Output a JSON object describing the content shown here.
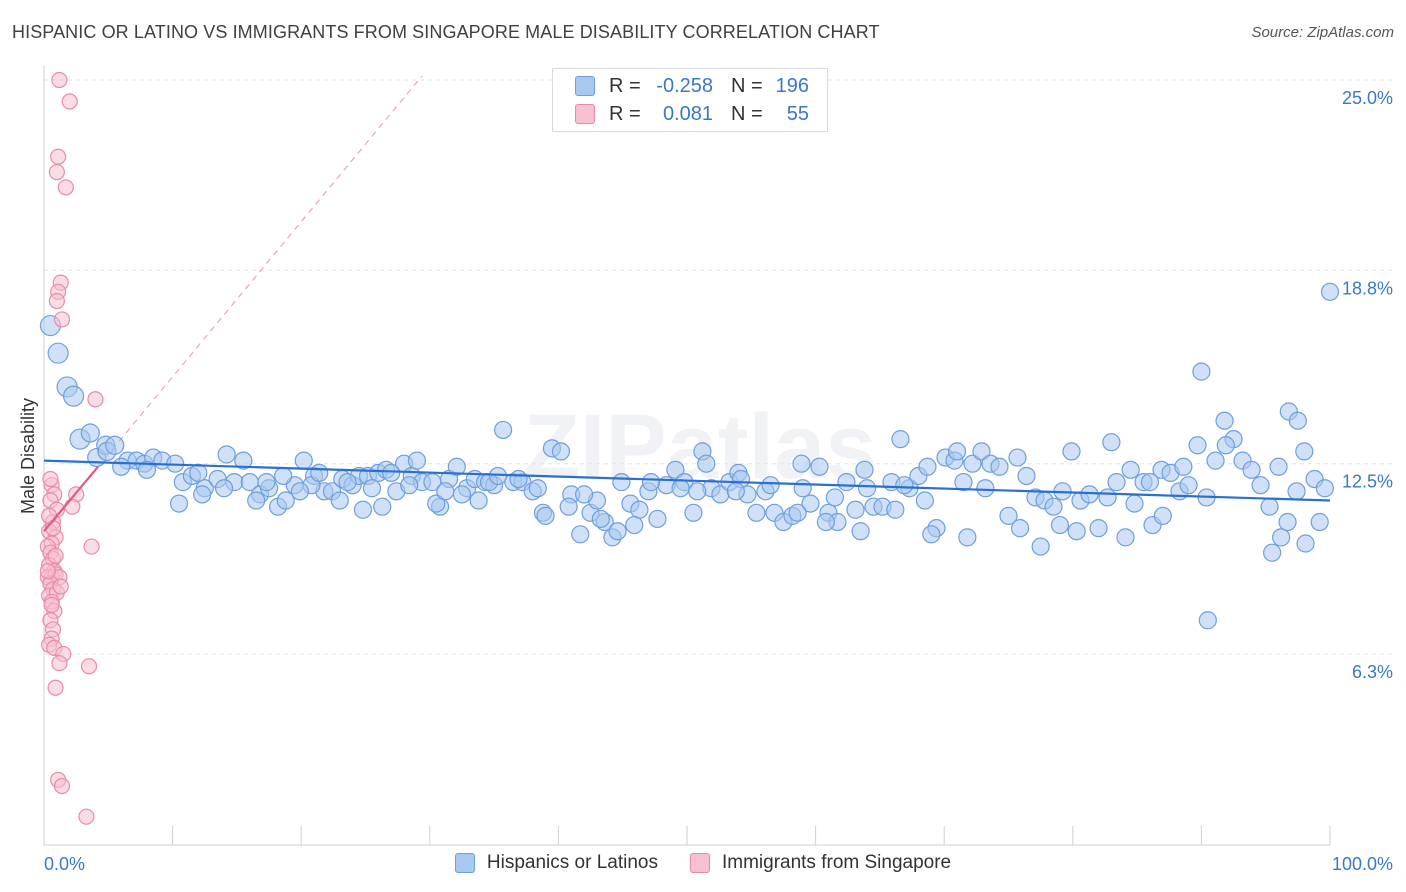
{
  "title": "HISPANIC OR LATINO VS IMMIGRANTS FROM SINGAPORE MALE DISABILITY CORRELATION CHART",
  "source": "Source: ZipAtlas.com",
  "watermark": "ZIPatlas",
  "colors": {
    "blue_fill": "#a9c8f0",
    "blue_stroke": "#6d9fdc",
    "blue_line": "#2a6fd1",
    "pink_fill": "#f6c0d0",
    "pink_stroke": "#e98aa7",
    "pink_line": "#e05a86",
    "axis_label": "#3a78c9"
  },
  "legend": {
    "rows": [
      {
        "r_label": "R =",
        "r_value": "-0.258",
        "n_label": "N =",
        "n_value": "196"
      },
      {
        "r_label": "R =",
        "r_value": "0.081",
        "n_label": "N =",
        "n_value": "55"
      }
    ]
  },
  "chart_data": {
    "type": "scatter",
    "ylabel": "Male Disability",
    "xlim": [
      0,
      100
    ],
    "ylim": [
      0,
      26
    ],
    "x_tick_labels": [
      "0.0%",
      "100.0%"
    ],
    "y_ticks": [
      {
        "value": 6.3,
        "label": "6.3%"
      },
      {
        "value": 12.5,
        "label": "12.5%"
      },
      {
        "value": 18.8,
        "label": "18.8%"
      },
      {
        "value": 25.0,
        "label": "25.0%"
      }
    ],
    "grid": "horizontal dashed",
    "series": [
      {
        "name": "Hispanics or Latinos",
        "trend": {
          "x": [
            0,
            100
          ],
          "y": [
            12.6,
            11.3
          ]
        },
        "points": [
          [
            0.5,
            17.0
          ],
          [
            1.1,
            16.1
          ],
          [
            1.8,
            15.0
          ],
          [
            2.3,
            14.7
          ],
          [
            2.8,
            13.3
          ],
          [
            3.6,
            13.5
          ],
          [
            4.1,
            12.7
          ],
          [
            4.8,
            13.1
          ],
          [
            4.9,
            12.9
          ],
          [
            5.5,
            13.1
          ],
          [
            6.5,
            12.6
          ],
          [
            7.2,
            12.6
          ],
          [
            7.8,
            12.5
          ],
          [
            8.5,
            12.7
          ],
          [
            9.2,
            12.6
          ],
          [
            10.2,
            12.5
          ],
          [
            10.8,
            11.9
          ],
          [
            11.5,
            12.1
          ],
          [
            12.0,
            12.2
          ],
          [
            12.5,
            11.7
          ],
          [
            13.5,
            12.0
          ],
          [
            14.2,
            12.8
          ],
          [
            14.8,
            11.9
          ],
          [
            15.5,
            12.6
          ],
          [
            16.0,
            11.9
          ],
          [
            16.8,
            11.5
          ],
          [
            17.5,
            11.7
          ],
          [
            18.2,
            11.1
          ],
          [
            18.8,
            11.3
          ],
          [
            19.5,
            11.8
          ],
          [
            20.2,
            12.6
          ],
          [
            21.0,
            12.1
          ],
          [
            21.8,
            11.6
          ],
          [
            22.4,
            11.6
          ],
          [
            23.2,
            12.0
          ],
          [
            24.0,
            11.8
          ],
          [
            24.5,
            12.1
          ],
          [
            25.2,
            12.1
          ],
          [
            26.0,
            12.2
          ],
          [
            26.6,
            12.3
          ],
          [
            27.4,
            11.6
          ],
          [
            28.0,
            12.5
          ],
          [
            28.6,
            12.1
          ],
          [
            29.4,
            11.9
          ],
          [
            30.2,
            11.9
          ],
          [
            30.8,
            11.1
          ],
          [
            31.5,
            12.0
          ],
          [
            32.1,
            12.4
          ],
          [
            32.9,
            11.7
          ],
          [
            33.5,
            12.0
          ],
          [
            34.3,
            11.9
          ],
          [
            35.0,
            11.8
          ],
          [
            35.7,
            13.6
          ],
          [
            36.5,
            11.9
          ],
          [
            37.2,
            11.9
          ],
          [
            38.0,
            11.6
          ],
          [
            38.8,
            10.9
          ],
          [
            39.5,
            13.0
          ],
          [
            40.2,
            12.9
          ],
          [
            41.0,
            11.5
          ],
          [
            41.7,
            10.2
          ],
          [
            42.5,
            10.9
          ],
          [
            43.0,
            11.3
          ],
          [
            43.6,
            10.6
          ],
          [
            44.2,
            10.1
          ],
          [
            44.9,
            11.9
          ],
          [
            45.6,
            11.2
          ],
          [
            46.3,
            11.0
          ],
          [
            47.0,
            11.6
          ],
          [
            47.7,
            10.7
          ],
          [
            48.4,
            11.8
          ],
          [
            49.1,
            12.3
          ],
          [
            49.8,
            11.9
          ],
          [
            50.5,
            10.9
          ],
          [
            51.2,
            12.9
          ],
          [
            51.9,
            11.7
          ],
          [
            52.6,
            11.5
          ],
          [
            53.3,
            11.9
          ],
          [
            54.0,
            12.2
          ],
          [
            54.7,
            11.5
          ],
          [
            55.4,
            10.9
          ],
          [
            56.1,
            11.6
          ],
          [
            56.8,
            10.9
          ],
          [
            57.5,
            10.6
          ],
          [
            58.2,
            10.8
          ],
          [
            58.9,
            12.5
          ],
          [
            59.6,
            11.2
          ],
          [
            60.3,
            12.4
          ],
          [
            61.0,
            10.9
          ],
          [
            61.7,
            10.6
          ],
          [
            62.4,
            11.9
          ],
          [
            63.1,
            11.0
          ],
          [
            63.8,
            12.3
          ],
          [
            64.5,
            11.1
          ],
          [
            65.2,
            11.1
          ],
          [
            65.9,
            11.9
          ],
          [
            66.6,
            13.3
          ],
          [
            67.3,
            11.7
          ],
          [
            68.0,
            12.1
          ],
          [
            68.7,
            12.4
          ],
          [
            69.4,
            10.4
          ],
          [
            70.1,
            12.7
          ],
          [
            70.8,
            12.6
          ],
          [
            71.5,
            11.9
          ],
          [
            72.2,
            12.5
          ],
          [
            72.9,
            12.9
          ],
          [
            73.6,
            12.5
          ],
          [
            74.3,
            12.4
          ],
          [
            75.0,
            10.8
          ],
          [
            75.7,
            12.7
          ],
          [
            76.4,
            12.1
          ],
          [
            77.1,
            11.4
          ],
          [
            77.8,
            11.3
          ],
          [
            78.5,
            11.1
          ],
          [
            79.2,
            11.6
          ],
          [
            79.9,
            12.9
          ],
          [
            80.6,
            11.3
          ],
          [
            81.3,
            11.5
          ],
          [
            82.0,
            10.4
          ],
          [
            82.7,
            11.4
          ],
          [
            83.4,
            11.9
          ],
          [
            84.1,
            10.1
          ],
          [
            84.8,
            11.2
          ],
          [
            85.5,
            11.9
          ],
          [
            86.2,
            10.5
          ],
          [
            86.9,
            12.3
          ],
          [
            87.6,
            12.2
          ],
          [
            88.3,
            11.6
          ],
          [
            89.0,
            11.8
          ],
          [
            89.7,
            13.1
          ],
          [
            90.4,
            11.4
          ],
          [
            91.1,
            12.6
          ],
          [
            91.8,
            13.9
          ],
          [
            92.5,
            13.3
          ],
          [
            93.2,
            12.6
          ],
          [
            93.9,
            12.3
          ],
          [
            94.6,
            11.8
          ],
          [
            95.3,
            11.1
          ],
          [
            96.0,
            12.4
          ],
          [
            96.7,
            10.6
          ],
          [
            97.4,
            11.6
          ],
          [
            98.1,
            9.9
          ],
          [
            98.8,
            12.0
          ],
          [
            99.2,
            10.6
          ],
          [
            99.6,
            11.7
          ],
          [
            88.6,
            12.4
          ],
          [
            86.0,
            11.9
          ],
          [
            83.0,
            13.2
          ],
          [
            80.3,
            10.3
          ],
          [
            77.5,
            9.8
          ],
          [
            75.9,
            10.4
          ],
          [
            73.2,
            11.7
          ],
          [
            71.0,
            12.9
          ],
          [
            68.5,
            11.3
          ],
          [
            66.2,
            11.0
          ],
          [
            64.0,
            11.7
          ],
          [
            61.5,
            11.4
          ],
          [
            59.0,
            11.7
          ],
          [
            56.5,
            11.8
          ],
          [
            54.2,
            12.0
          ],
          [
            51.5,
            12.5
          ],
          [
            49.5,
            11.7
          ],
          [
            47.2,
            11.9
          ],
          [
            44.6,
            10.3
          ],
          [
            42.0,
            11.5
          ],
          [
            39.0,
            10.8
          ],
          [
            36.9,
            12.0
          ],
          [
            34.6,
            11.9
          ],
          [
            32.5,
            11.5
          ],
          [
            30.5,
            11.2
          ],
          [
            28.4,
            11.8
          ],
          [
            26.3,
            11.1
          ],
          [
            24.8,
            11.0
          ],
          [
            23.0,
            11.3
          ],
          [
            20.8,
            11.8
          ],
          [
            18.6,
            12.1
          ],
          [
            16.5,
            11.3
          ],
          [
            14.0,
            11.7
          ],
          [
            12.3,
            11.5
          ],
          [
            10.5,
            11.2
          ],
          [
            8.0,
            12.3
          ],
          [
            6.0,
            12.4
          ],
          [
            96.8,
            14.2
          ],
          [
            97.5,
            13.9
          ],
          [
            98.0,
            12.9
          ],
          [
            100.0,
            18.1
          ],
          [
            90.0,
            15.5
          ],
          [
            87.0,
            10.8
          ],
          [
            95.5,
            9.6
          ],
          [
            96.2,
            10.1
          ],
          [
            90.5,
            7.4
          ],
          [
            91.9,
            13.1
          ],
          [
            84.5,
            12.3
          ],
          [
            79.0,
            10.5
          ],
          [
            71.8,
            10.1
          ],
          [
            69.0,
            10.2
          ],
          [
            66.9,
            11.8
          ],
          [
            63.5,
            10.3
          ],
          [
            60.8,
            10.6
          ],
          [
            58.6,
            10.9
          ],
          [
            53.8,
            11.6
          ],
          [
            50.8,
            11.6
          ],
          [
            45.9,
            10.5
          ],
          [
            43.3,
            10.7
          ],
          [
            40.8,
            11.1
          ],
          [
            38.4,
            11.7
          ],
          [
            35.3,
            12.1
          ],
          [
            33.8,
            11.3
          ],
          [
            31.2,
            11.6
          ],
          [
            29.0,
            12.6
          ],
          [
            27.0,
            12.2
          ],
          [
            25.5,
            11.7
          ],
          [
            23.6,
            11.9
          ],
          [
            21.4,
            12.2
          ],
          [
            19.9,
            11.6
          ],
          [
            17.3,
            11.9
          ]
        ]
      },
      {
        "name": "Immigrants from Singapore",
        "trend": {
          "x": [
            0,
            4.2
          ],
          "y": [
            10.3,
            12.4
          ]
        },
        "points": [
          [
            1.2,
            25.0
          ],
          [
            2.0,
            24.3
          ],
          [
            1.1,
            22.5
          ],
          [
            1.0,
            22.0
          ],
          [
            1.7,
            21.5
          ],
          [
            1.3,
            18.4
          ],
          [
            1.1,
            18.1
          ],
          [
            1.0,
            17.8
          ],
          [
            1.4,
            17.2
          ],
          [
            4.0,
            14.6
          ],
          [
            0.6,
            11.8
          ],
          [
            0.8,
            11.5
          ],
          [
            0.5,
            11.3
          ],
          [
            1.0,
            11.0
          ],
          [
            2.5,
            11.5
          ],
          [
            2.2,
            11.1
          ],
          [
            0.7,
            10.6
          ],
          [
            0.4,
            10.3
          ],
          [
            0.9,
            10.1
          ],
          [
            0.6,
            9.9
          ],
          [
            0.3,
            9.8
          ],
          [
            0.5,
            9.6
          ],
          [
            0.7,
            9.4
          ],
          [
            0.4,
            9.2
          ],
          [
            0.8,
            9.0
          ],
          [
            0.6,
            8.8
          ],
          [
            0.3,
            8.8
          ],
          [
            0.9,
            8.9
          ],
          [
            1.2,
            8.8
          ],
          [
            0.5,
            8.6
          ],
          [
            0.7,
            8.4
          ],
          [
            0.4,
            8.2
          ],
          [
            1.0,
            8.3
          ],
          [
            0.6,
            8.0
          ],
          [
            0.8,
            7.7
          ],
          [
            0.5,
            7.4
          ],
          [
            0.7,
            7.1
          ],
          [
            0.6,
            6.8
          ],
          [
            0.4,
            6.6
          ],
          [
            0.8,
            6.5
          ],
          [
            1.5,
            6.3
          ],
          [
            1.2,
            6.0
          ],
          [
            3.5,
            5.9
          ],
          [
            0.9,
            5.2
          ],
          [
            1.1,
            2.2
          ],
          [
            1.4,
            2.0
          ],
          [
            3.3,
            1.0
          ],
          [
            3.7,
            9.8
          ],
          [
            0.5,
            12.0
          ],
          [
            0.7,
            10.4
          ],
          [
            0.9,
            9.5
          ],
          [
            1.3,
            8.5
          ],
          [
            0.3,
            9.0
          ],
          [
            0.6,
            7.9
          ],
          [
            0.4,
            10.8
          ]
        ]
      }
    ]
  }
}
